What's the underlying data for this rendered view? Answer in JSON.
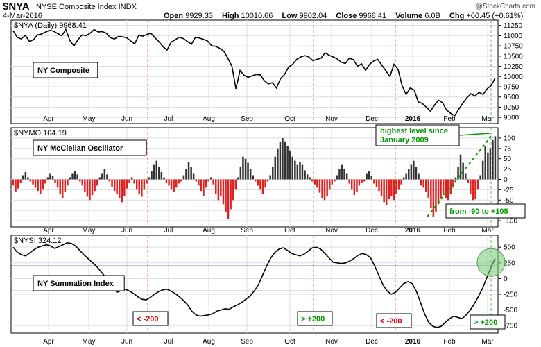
{
  "header": {
    "symbol": "$NYA",
    "name": "NYSE Composite Index",
    "exchange": "INDX",
    "date": "4-Mar-2016",
    "brand": "@StockCharts.com",
    "open_label": "Open",
    "open": "9929.33",
    "high_label": "High",
    "high": "10010.66",
    "low_label": "Low",
    "low": "9902.04",
    "close_label": "Close",
    "close": "9968.41",
    "volume_label": "Volume",
    "volume": "6.0B",
    "chg_label": "Chg",
    "chg": "+60.45 (+0.61%)"
  },
  "colors": {
    "positive": "#333333",
    "negative": "#dd2222",
    "line": "#000000",
    "red_marker": "#ff6a6a",
    "green_marker": "#66bb66",
    "callout_green": "#009900",
    "callout_red": "#dd0000",
    "ref_line": "#000066",
    "grid": "#dcdcdc",
    "circle": "#7fcf7f"
  },
  "chart_data": [
    {
      "type": "line",
      "panel_label": "$NYA (Daily) 9968.41",
      "legend_box": "NY Composite",
      "x_ticks": [
        "Apr",
        "May",
        "Jun",
        "Jul",
        "Aug",
        "Sep",
        "Oct",
        "Nov",
        "Dec",
        "2016",
        "Feb",
        "Mar"
      ],
      "y_ticks": [
        9000,
        9250,
        9500,
        9750,
        10000,
        10250,
        10500,
        10750,
        11000,
        11250
      ],
      "ylim": [
        8850,
        11380
      ],
      "series": [
        {
          "values": [
            11120,
            10960,
            10920,
            11010,
            10860,
            10900,
            11020,
            11040,
            11090,
            11130,
            11110,
            11050,
            11000,
            11150,
            10880,
            10750,
            10900,
            11020,
            11000,
            11060,
            11150,
            11090,
            11100,
            11060,
            10950,
            10920,
            10980,
            10970,
            10950,
            10870,
            10800,
            11010,
            10990,
            11030,
            11060,
            10950,
            10850,
            10730,
            10650,
            10840,
            10900,
            10960,
            10930,
            10860,
            10790,
            10960,
            10940,
            10910,
            10870,
            10750,
            10740,
            10690,
            10620,
            10450,
            10250,
            9700,
            10150,
            10030,
            9980,
            10020,
            10050,
            10040,
            9900,
            9820,
            9850,
            9720,
            9950,
            10050,
            10230,
            10300,
            10420,
            10480,
            10510,
            10480,
            10390,
            10420,
            10450,
            10580,
            10520,
            10480,
            10430,
            10350,
            10320,
            10450,
            10410,
            10250,
            10310,
            10150,
            10300,
            10380,
            10420,
            10280,
            10140,
            10000,
            10300,
            10180,
            9780,
            9560,
            9720,
            9670,
            9380,
            9340,
            9250,
            9150,
            9300,
            9420,
            9360,
            9180,
            9100,
            9040,
            9200,
            9350,
            9480,
            9580,
            9520,
            9610,
            9560,
            9700,
            9780,
            9968.41
          ]
        }
      ]
    },
    {
      "type": "bar",
      "panel_label": "$NYMO 104.19",
      "legend_box": "NY McClellan Oscillator",
      "x_ticks": [
        "Apr",
        "May",
        "Jun",
        "Jul",
        "Aug",
        "Sep",
        "Oct",
        "Nov",
        "Dec",
        "2016",
        "Feb",
        "Mar"
      ],
      "y_ticks": [
        -100,
        -75,
        -50,
        -25,
        0,
        25,
        50,
        75,
        100
      ],
      "ylim": [
        -115,
        125
      ],
      "series": [
        {
          "values": [
            -15,
            -30,
            -22,
            -8,
            10,
            18,
            5,
            -5,
            -12,
            -20,
            -28,
            -35,
            -25,
            -10,
            5,
            15,
            8,
            -8,
            -20,
            -35,
            -45,
            -30,
            -15,
            5,
            15,
            20,
            12,
            -5,
            -15,
            -30,
            -42,
            -50,
            -38,
            -28,
            -15,
            5,
            15,
            25,
            12,
            -5,
            -18,
            -28,
            -35,
            -45,
            -55,
            -40,
            -22,
            -8,
            5,
            -10,
            -25,
            -35,
            -42,
            -25,
            -10,
            5,
            20,
            35,
            45,
            30,
            18,
            5,
            -8,
            -15,
            -25,
            -30,
            -20,
            -10,
            -5,
            10,
            25,
            42,
            30,
            15,
            -5,
            -15,
            -28,
            -40,
            -20,
            -5,
            5,
            -12,
            -35,
            -50,
            -40,
            -60,
            -78,
            -95,
            -72,
            -50,
            -25,
            5,
            30,
            55,
            50,
            40,
            25,
            10,
            -5,
            -15,
            -25,
            -35,
            -20,
            -5,
            10,
            30,
            55,
            75,
            90,
            100,
            92,
            80,
            70,
            55,
            45,
            35,
            42,
            35,
            22,
            12,
            5,
            -5,
            -12,
            -20,
            -32,
            -45,
            -50,
            -40,
            -25,
            -12,
            -5,
            10,
            25,
            35,
            25,
            15,
            -10,
            -25,
            -38,
            -30,
            -15,
            -8,
            -5,
            15,
            20,
            8,
            -10,
            -18,
            -28,
            -40,
            -55,
            -62,
            -48,
            -40,
            -50,
            -35,
            -25,
            -12,
            5,
            15,
            25,
            35,
            45,
            30,
            15,
            -15,
            -20,
            -30,
            -45,
            -70,
            -90,
            -78,
            -60,
            -45,
            -38,
            -45,
            -50,
            -35,
            -20,
            5,
            30,
            60,
            40,
            15,
            -8,
            -35,
            -50,
            -48,
            -25,
            10,
            45,
            80,
            65,
            75,
            95,
            104.19
          ]
        }
      ],
      "annotations": [
        "highest level since January 2009",
        "from -90 to +105"
      ]
    },
    {
      "type": "line",
      "panel_label": "$NYSI 324.12",
      "legend_box": "NY Summation Index",
      "x_ticks": [
        "Apr",
        "May",
        "Jun",
        "Jul",
        "Aug",
        "Sep",
        "Oct",
        "Nov",
        "Dec",
        "2016",
        "Feb",
        "Mar"
      ],
      "y_ticks": [
        -750,
        -500,
        -250,
        0,
        250,
        500
      ],
      "ylim": [
        -870,
        690
      ],
      "reference_lines": [
        200,
        -200
      ],
      "series": [
        {
          "values": [
            500,
            420,
            380,
            360,
            410,
            460,
            500,
            520,
            540,
            520,
            480,
            510,
            540,
            570,
            560,
            520,
            450,
            380,
            320,
            260,
            200,
            120,
            40,
            -50,
            -150,
            -220,
            -190,
            -170,
            -200,
            -240,
            -290,
            -330,
            -340,
            -300,
            -250,
            -210,
            -180,
            -170,
            -200,
            -240,
            -290,
            -350,
            -420,
            -520,
            -580,
            -600,
            -590,
            -580,
            -560,
            -520,
            -500,
            -480,
            -490,
            -450,
            -420,
            -380,
            -330,
            -280,
            -200,
            -100,
            50,
            200,
            330,
            420,
            470,
            490,
            450,
            400,
            380,
            360,
            390,
            440,
            490,
            500,
            470,
            400,
            330,
            260,
            250,
            240,
            250,
            280,
            320,
            370,
            400,
            380,
            330,
            200,
            50,
            -100,
            -200,
            -250,
            -220,
            -150,
            -80,
            -50,
            -80,
            -200,
            -380,
            -560,
            -700,
            -760,
            -780,
            -760,
            -700,
            -640,
            -600,
            -620,
            -640,
            -580,
            -500,
            -400,
            -280,
            -150,
            20,
            180,
            324.12
          ]
        }
      ],
      "callouts": [
        "< -200",
        "> +200",
        "< -200",
        "> +200"
      ]
    }
  ]
}
